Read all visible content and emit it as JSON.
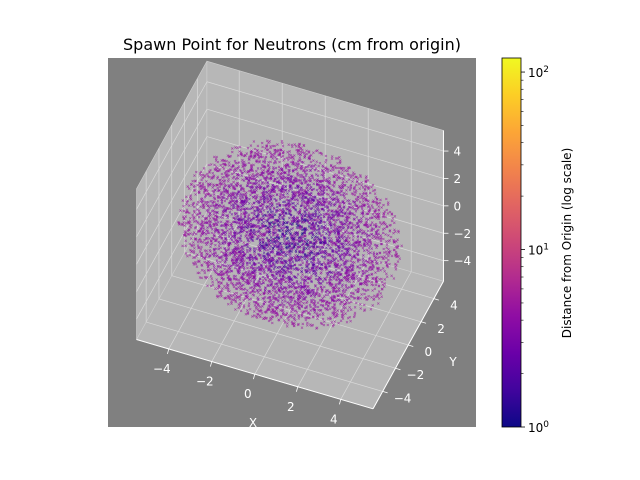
{
  "chart_data": {
    "type": "scatter",
    "projection": "3d",
    "title": "Spawn Point for Neutrons (cm from origin)",
    "xlabel": "X",
    "ylabel": "Y",
    "zlabel": "",
    "x_ticks": [
      -4,
      -2,
      0,
      2,
      4
    ],
    "y_ticks": [
      -4,
      -2,
      0,
      2,
      4
    ],
    "z_ticks": [
      -4,
      -2,
      0,
      2,
      4
    ],
    "x_tick_labels": [
      "−4",
      "−2",
      "0",
      "2",
      "4"
    ],
    "y_tick_labels": [
      "−4",
      "−2",
      "0",
      "2",
      "4"
    ],
    "z_tick_labels": [
      "−4",
      "−2",
      "0",
      "2",
      "4"
    ],
    "xlim": [
      -5.5,
      5.5
    ],
    "ylim": [
      -5.5,
      5.5
    ],
    "zlim": [
      -5.5,
      5.5
    ],
    "point_cloud": {
      "shape": "sphere",
      "center": [
        0,
        0,
        0
      ],
      "radius": 5,
      "count": 5200,
      "marker": "x"
    },
    "colormap": "plasma",
    "colorbar": {
      "label": "Distance from Origin (log scale)",
      "scale": "log",
      "range": [
        1,
        120
      ],
      "ticks": [
        {
          "value": 1,
          "base": "10",
          "exp": "0"
        },
        {
          "value": 10,
          "base": "10",
          "exp": "1"
        },
        {
          "value": 100,
          "base": "10",
          "exp": "2"
        }
      ]
    },
    "grid": true,
    "axes_background": "#808080",
    "pane_color": "#b7b7b7",
    "tick_label_color": "#ffffff"
  }
}
